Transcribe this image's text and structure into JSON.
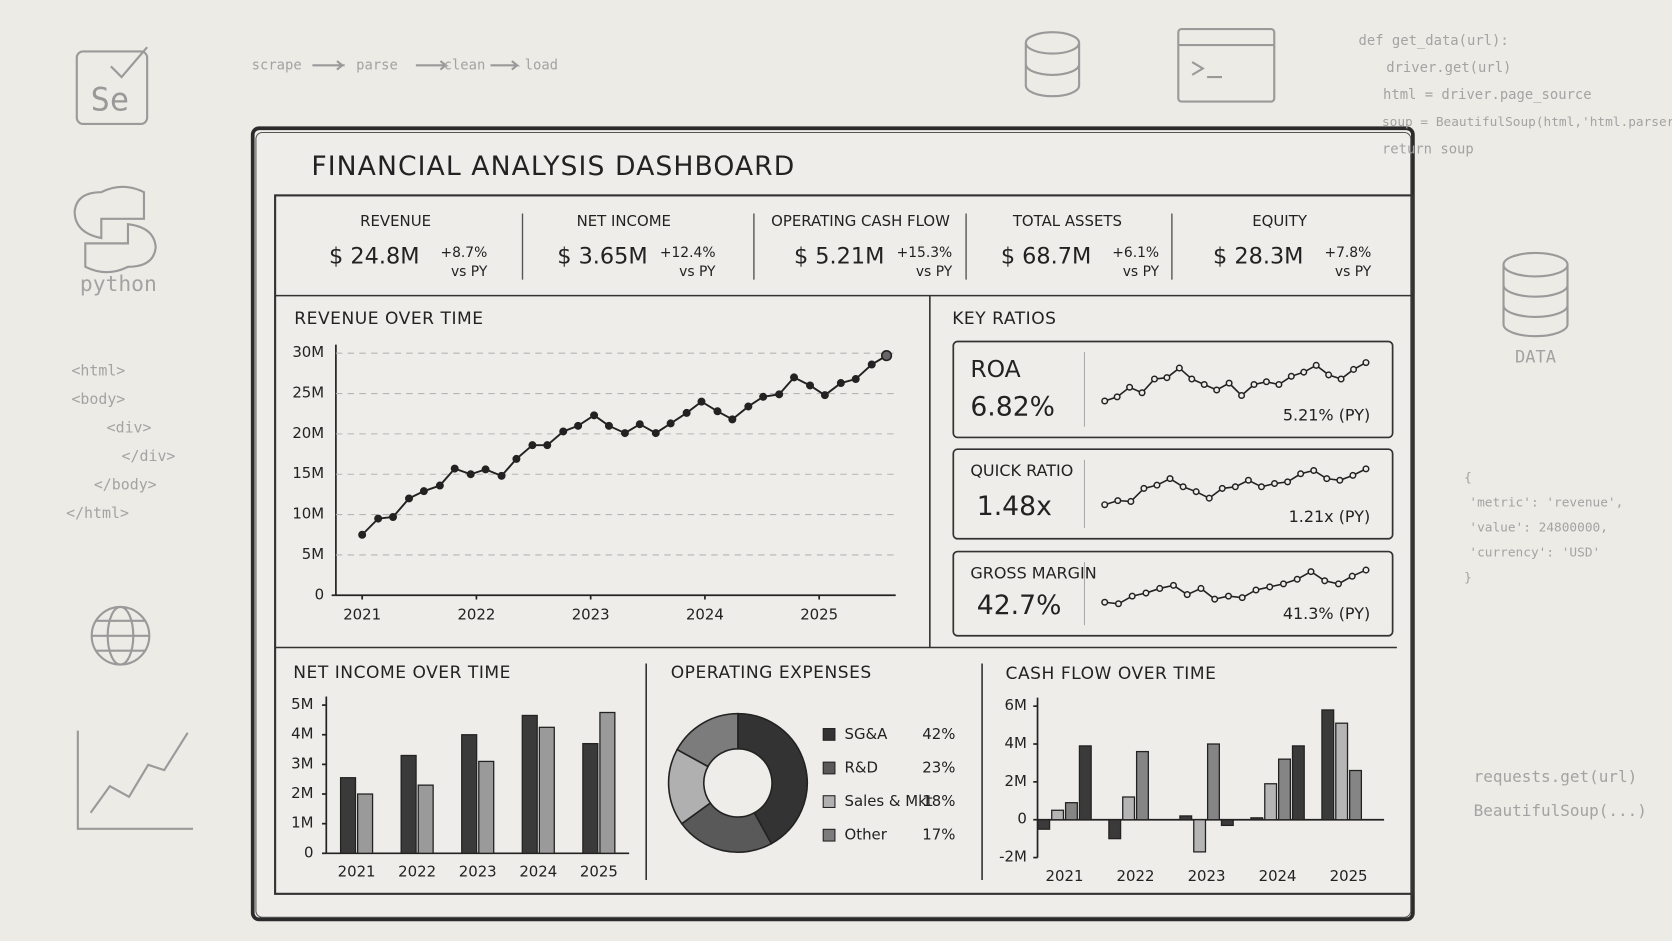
{
  "decor": {
    "logo": "Se",
    "pipeline": [
      "scrape",
      "parse",
      "clean",
      "load"
    ],
    "code": [
      "def get_data(url):",
      "driver.get(url)",
      "html = driver.page_source",
      "soup = BeautifulSoup(html,'html.parser')",
      "return soup"
    ],
    "python": "python",
    "html": [
      "<html>",
      "<body>",
      "<div>",
      "</div>",
      "</body>",
      "</html>"
    ],
    "db_label": "DATA",
    "json": [
      "{",
      "'metric': 'revenue',",
      "'value': 24800000,",
      "'currency': 'USD'",
      "}"
    ],
    "calls": [
      "requests.get(url)",
      "BeautifulSoup(...)"
    ]
  },
  "title": "FINANCIAL ANALYSIS DASHBOARD",
  "kpis": [
    {
      "label": "REVENUE",
      "value": "$ 24.8M",
      "change": "+8.7%",
      "note": "vs PY"
    },
    {
      "label": "NET INCOME",
      "value": "$ 3.65M",
      "change": "+12.4%",
      "note": "vs PY"
    },
    {
      "label": "OPERATING CASH FLOW",
      "value": "$ 5.21M",
      "change": "+15.3%",
      "note": "vs PY"
    },
    {
      "label": "TOTAL ASSETS",
      "value": "$ 68.7M",
      "change": "+6.1%",
      "note": "vs PY"
    },
    {
      "label": "EQUITY",
      "value": "$ 28.3M",
      "change": "+7.8%",
      "note": "vs PY"
    }
  ],
  "ratios_title": "KEY RATIOS",
  "chart_data": [
    {
      "type": "line",
      "title": "REVENUE OVER TIME",
      "color": "#222",
      "x": [
        2021.0,
        2021.14,
        2021.27,
        2021.41,
        2021.54,
        2021.68,
        2021.81,
        2021.95,
        2022.08,
        2022.22,
        2022.35,
        2022.49,
        2022.62,
        2022.76,
        2022.89,
        2023.03,
        2023.16,
        2023.3,
        2023.43,
        2023.57,
        2023.7,
        2023.84,
        2023.97,
        2024.11,
        2024.24,
        2024.38,
        2024.51,
        2024.65,
        2024.78,
        2024.92,
        2025.05,
        2025.19,
        2025.32,
        2025.46,
        2025.59
      ],
      "values": [
        7.5,
        9.5,
        9.7,
        12.0,
        12.9,
        13.6,
        15.7,
        15.0,
        15.6,
        14.8,
        16.9,
        18.6,
        18.6,
        20.3,
        21.0,
        22.3,
        21.0,
        20.1,
        21.2,
        20.1,
        21.3,
        22.6,
        24.0,
        22.8,
        21.8,
        23.4,
        24.6,
        24.9,
        27.0,
        26.0,
        24.8,
        26.3,
        26.8,
        28.6,
        29.7
      ],
      "xlim": [
        2020.77,
        2025.67
      ],
      "xticks": [
        2021,
        2022,
        2023,
        2024,
        2025
      ],
      "ylim": [
        0,
        30
      ],
      "yticks": [
        0,
        {
          "value": 5,
          "label": "5M"
        },
        {
          "value": 10,
          "label": "10M"
        },
        {
          "value": 15,
          "label": "15M"
        },
        {
          "value": 20,
          "label": "20M"
        },
        {
          "value": 25,
          "label": "25M"
        },
        {
          "value": 30,
          "label": "30M"
        }
      ],
      "grid": true
    },
    {
      "type": "sparkline",
      "title": "ROA",
      "value_text": "6.82%",
      "previous": "5.21% (PY)",
      "color": "#222",
      "values": [
        4.0,
        4.3,
        5.0,
        4.6,
        5.6,
        5.7,
        6.4,
        5.6,
        5.2,
        4.8,
        5.3,
        4.4,
        5.2,
        5.4,
        5.2,
        5.8,
        6.1,
        6.6,
        5.9,
        5.6,
        6.3,
        6.8
      ]
    },
    {
      "type": "sparkline",
      "title": "QUICK RATIO",
      "value_text": "1.48x",
      "previous": "1.21x (PY)",
      "color": "#222",
      "values": [
        1.0,
        1.05,
        1.04,
        1.2,
        1.24,
        1.32,
        1.22,
        1.16,
        1.08,
        1.2,
        1.22,
        1.3,
        1.22,
        1.26,
        1.28,
        1.38,
        1.42,
        1.32,
        1.3,
        1.36,
        1.44
      ]
    },
    {
      "type": "sparkline",
      "title": "GROSS MARGIN",
      "value_text": "42.7%",
      "previous": "41.3% (PY)",
      "color": "#222",
      "values": [
        40.6,
        40.5,
        41.0,
        41.2,
        41.5,
        41.7,
        41.1,
        41.5,
        40.8,
        41.0,
        40.9,
        41.4,
        41.6,
        41.8,
        42.1,
        42.6,
        42.0,
        41.8,
        42.3,
        42.7
      ]
    },
    {
      "type": "bar",
      "title": "NET INCOME OVER TIME",
      "categories": [
        "2021",
        "2022",
        "2023",
        "2024",
        "2025"
      ],
      "series": [
        {
          "color": "#3a3a3a",
          "values": [
            2.55,
            3.3,
            4.0,
            4.65,
            3.7
          ]
        },
        {
          "color": "#9a9a9a",
          "values": [
            2.0,
            2.3,
            3.1,
            4.25,
            4.75
          ]
        }
      ],
      "ylim": [
        0,
        5
      ],
      "yticks": [
        0,
        {
          "value": 1,
          "label": "1M"
        },
        {
          "value": 2,
          "label": "2M"
        },
        {
          "value": 3,
          "label": "3M"
        },
        {
          "value": 4,
          "label": "4M"
        },
        {
          "value": 5,
          "label": "5M"
        }
      ]
    },
    {
      "type": "donut",
      "title": "OPERATING EXPENSES",
      "categories": [
        "SG&A",
        "R&D",
        "Sales & Mkt",
        "Other"
      ],
      "values": [
        42,
        23,
        18,
        17
      ],
      "value_labels": [
        "42%",
        "23%",
        "18%",
        "17%"
      ],
      "colors": [
        "#333333",
        "#595959",
        "#b0b0b0",
        "#7c7c7c"
      ]
    },
    {
      "type": "bar",
      "title": "CASH FLOW OVER TIME",
      "categories": [
        "2021",
        "2022",
        "2023",
        "2024",
        "2025"
      ],
      "series": [
        {
          "color": "#3a3a3a",
          "values": [
            -0.5,
            -1.0,
            0.2,
            0.1,
            5.8
          ]
        },
        {
          "color": "#b5b5b5",
          "values": [
            0.5,
            1.2,
            -1.7,
            1.9,
            5.1
          ]
        },
        {
          "color": "#858585",
          "values": [
            0.9,
            3.6,
            4.0,
            3.2,
            2.6
          ]
        },
        {
          "color": "#3a3a3a",
          "values": [
            3.9,
            0.0,
            -0.3,
            3.9,
            0.0
          ]
        }
      ],
      "ylim": [
        -2,
        6
      ],
      "yticks": [
        {
          "value": -2,
          "label": "-2M"
        },
        0,
        {
          "value": 2,
          "label": "2M"
        },
        {
          "value": 4,
          "label": "4M"
        },
        {
          "value": 6,
          "label": "6M"
        }
      ]
    }
  ]
}
